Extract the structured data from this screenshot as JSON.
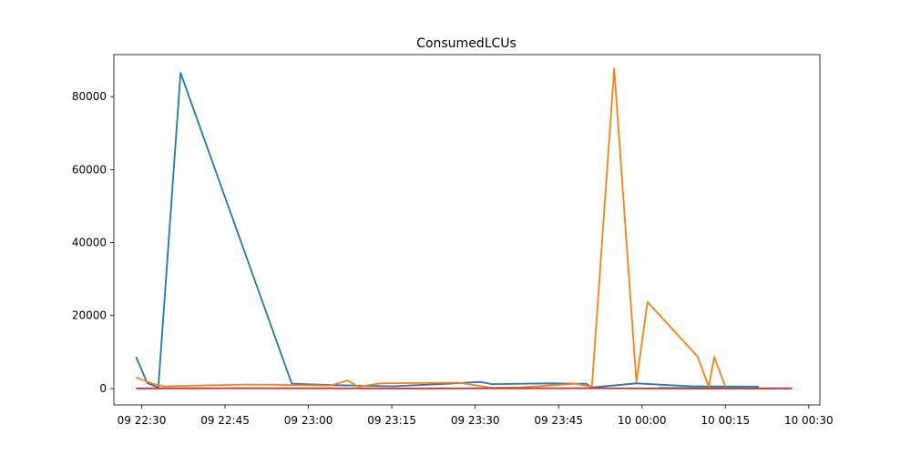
{
  "chart_data": {
    "type": "line",
    "title": "ConsumedLCUs",
    "xlabel": "",
    "ylabel": "",
    "grid": false,
    "xlim": [
      "2024-06-09 22:25",
      "2024-06-10 00:32"
    ],
    "ylim": [
      -4500,
      91500
    ],
    "x_ticks": [
      {
        "value": "2024-06-09 22:30",
        "label": "09 22:30"
      },
      {
        "value": "2024-06-09 22:45",
        "label": "09 22:45"
      },
      {
        "value": "2024-06-09 23:00",
        "label": "09 23:00"
      },
      {
        "value": "2024-06-09 23:15",
        "label": "09 23:15"
      },
      {
        "value": "2024-06-09 23:30",
        "label": "09 23:30"
      },
      {
        "value": "2024-06-09 23:45",
        "label": "09 23:45"
      },
      {
        "value": "2024-06-10 00:00",
        "label": "10 00:00"
      },
      {
        "value": "2024-06-10 00:15",
        "label": "10 00:15"
      },
      {
        "value": "2024-06-10 00:30",
        "label": "10 00:30"
      }
    ],
    "y_ticks": [
      {
        "value": 0,
        "label": "0"
      },
      {
        "value": 20000,
        "label": "20000"
      },
      {
        "value": 40000,
        "label": "40000"
      },
      {
        "value": 60000,
        "label": "60000"
      },
      {
        "value": 80000,
        "label": "80000"
      }
    ],
    "series": [
      {
        "color": "#1f77b4",
        "points": [
          {
            "x": "2024-06-09 22:29",
            "y": 8700
          },
          {
            "x": "2024-06-09 22:31",
            "y": 1500
          },
          {
            "x": "2024-06-09 22:33",
            "y": 300
          },
          {
            "x": "2024-06-09 22:37",
            "y": 86500
          },
          {
            "x": "2024-06-09 22:57",
            "y": 1300
          },
          {
            "x": "2024-06-09 23:05",
            "y": 900
          },
          {
            "x": "2024-06-09 23:15",
            "y": 600
          },
          {
            "x": "2024-06-09 23:25",
            "y": 1300
          },
          {
            "x": "2024-06-09 23:31",
            "y": 1800
          },
          {
            "x": "2024-06-09 23:33",
            "y": 1200
          },
          {
            "x": "2024-06-09 23:43",
            "y": 1400
          },
          {
            "x": "2024-06-09 23:50",
            "y": 1300
          },
          {
            "x": "2024-06-09 23:51",
            "y": 300
          },
          {
            "x": "2024-06-09 23:59",
            "y": 1400
          },
          {
            "x": "2024-06-10 00:09",
            "y": 600
          },
          {
            "x": "2024-06-10 00:21",
            "y": 500
          }
        ]
      },
      {
        "color": "#ff7f0e",
        "points": [
          {
            "x": "2024-06-09 22:29",
            "y": 3000
          },
          {
            "x": "2024-06-09 22:32",
            "y": 1300
          },
          {
            "x": "2024-06-09 22:34",
            "y": 600
          },
          {
            "x": "2024-06-09 22:49",
            "y": 1100
          },
          {
            "x": "2024-06-09 23:04",
            "y": 800
          },
          {
            "x": "2024-06-09 23:07",
            "y": 2200
          },
          {
            "x": "2024-06-09 23:09",
            "y": 500
          },
          {
            "x": "2024-06-09 23:13",
            "y": 1400
          },
          {
            "x": "2024-06-09 23:27",
            "y": 1600
          },
          {
            "x": "2024-06-09 23:33",
            "y": 200
          },
          {
            "x": "2024-06-09 23:38",
            "y": 300
          },
          {
            "x": "2024-06-09 23:48",
            "y": 1300
          },
          {
            "x": "2024-06-09 23:51",
            "y": 500
          },
          {
            "x": "2024-06-09 23:55",
            "y": 87700
          },
          {
            "x": "2024-06-09 23:59",
            "y": 1800
          },
          {
            "x": "2024-06-10 00:01",
            "y": 23700
          },
          {
            "x": "2024-06-10 00:10",
            "y": 8800
          },
          {
            "x": "2024-06-10 00:12",
            "y": 500
          },
          {
            "x": "2024-06-10 00:13",
            "y": 8700
          },
          {
            "x": "2024-06-10 00:15",
            "y": 400
          }
        ]
      },
      {
        "color": "#2ca02c",
        "points": [
          {
            "x": "2024-06-10 00:03",
            "y": 100
          },
          {
            "x": "2024-06-10 00:21",
            "y": 100
          }
        ]
      },
      {
        "color": "#bcbd22",
        "points": [
          {
            "x": "2024-06-10 00:08",
            "y": 50
          },
          {
            "x": "2024-06-10 00:21",
            "y": 50
          }
        ]
      },
      {
        "color": "#17becf",
        "points": [
          {
            "x": "2024-06-10 00:03",
            "y": 200
          },
          {
            "x": "2024-06-10 00:21",
            "y": 200
          }
        ]
      },
      {
        "color": "#d62728",
        "points": [
          {
            "x": "2024-06-09 22:29",
            "y": 50
          },
          {
            "x": "2024-06-09 22:50",
            "y": 100
          },
          {
            "x": "2024-06-09 23:20",
            "y": 50
          },
          {
            "x": "2024-06-09 23:50",
            "y": 100
          },
          {
            "x": "2024-06-10 00:03",
            "y": 50
          },
          {
            "x": "2024-06-10 00:21",
            "y": 50
          },
          {
            "x": "2024-06-10 00:27",
            "y": 50
          }
        ]
      }
    ]
  }
}
